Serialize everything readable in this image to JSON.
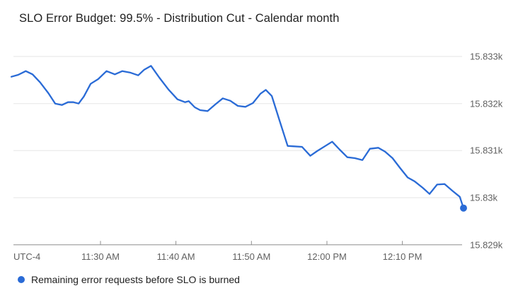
{
  "header": {
    "title": "SLO Error Budget: 99.5% - Distribution Cut - Calendar month"
  },
  "legend": {
    "label": "Remaining error requests before SLO is burned"
  },
  "colors": {
    "line": "#2a6bd6",
    "grid": "#e6e6e6",
    "axis": "#8f8f8f",
    "tick_label": "#616161",
    "title_text": "#212121"
  },
  "chart_data": {
    "type": "line",
    "title": "SLO Error Budget: 99.5% - Distribution Cut - Calendar month",
    "grid": true,
    "legend_position": "bottom-left",
    "x_axis": {
      "timezone_label": "UTC-4",
      "unit": "minutes since 11:18 AM",
      "range": [
        0,
        60.1
      ],
      "ticks": [
        {
          "t": 12,
          "label": "11:30 AM"
        },
        {
          "t": 22,
          "label": "11:40 AM"
        },
        {
          "t": 32,
          "label": "11:50 AM"
        },
        {
          "t": 42,
          "label": "12:00 PM"
        },
        {
          "t": 52,
          "label": "12:10 PM"
        }
      ]
    },
    "y_axis": {
      "side": "right",
      "range": [
        15829,
        15833
      ],
      "ticks": [
        {
          "v": 15833,
          "label": "15.833k"
        },
        {
          "v": 15832,
          "label": "15.832k"
        },
        {
          "v": 15831,
          "label": "15.831k"
        },
        {
          "v": 15830,
          "label": "15.83k"
        },
        {
          "v": 15829,
          "label": "15.829k"
        }
      ]
    },
    "series": [
      {
        "name": "Remaining error requests before SLO is burned",
        "endpoint_marker": true,
        "points": [
          [
            0.2,
            15832.57
          ],
          [
            1.1,
            15832.61
          ],
          [
            2.1,
            15832.69
          ],
          [
            3.0,
            15832.62
          ],
          [
            4.0,
            15832.45
          ],
          [
            5.1,
            15832.22
          ],
          [
            6.0,
            15832.0
          ],
          [
            6.9,
            15831.97
          ],
          [
            7.7,
            15832.03
          ],
          [
            8.4,
            15832.03
          ],
          [
            9.1,
            15832.0
          ],
          [
            9.8,
            15832.15
          ],
          [
            10.7,
            15832.42
          ],
          [
            11.7,
            15832.52
          ],
          [
            12.8,
            15832.69
          ],
          [
            13.9,
            15832.62
          ],
          [
            14.9,
            15832.69
          ],
          [
            15.9,
            15832.66
          ],
          [
            17.0,
            15832.6
          ],
          [
            17.8,
            15832.72
          ],
          [
            18.7,
            15832.8
          ],
          [
            19.8,
            15832.55
          ],
          [
            21.0,
            15832.3
          ],
          [
            22.2,
            15832.09
          ],
          [
            23.2,
            15832.03
          ],
          [
            23.7,
            15832.05
          ],
          [
            24.5,
            15831.92
          ],
          [
            25.2,
            15831.86
          ],
          [
            26.2,
            15831.84
          ],
          [
            27.2,
            15831.98
          ],
          [
            28.2,
            15832.11
          ],
          [
            29.2,
            15832.06
          ],
          [
            30.2,
            15831.95
          ],
          [
            31.2,
            15831.93
          ],
          [
            32.2,
            15832.01
          ],
          [
            33.2,
            15832.21
          ],
          [
            33.9,
            15832.29
          ],
          [
            34.7,
            15832.16
          ],
          [
            35.7,
            15831.65
          ],
          [
            36.8,
            15831.1
          ],
          [
            37.7,
            15831.09
          ],
          [
            38.7,
            15831.08
          ],
          [
            39.8,
            15830.89
          ],
          [
            40.7,
            15830.99
          ],
          [
            41.7,
            15831.09
          ],
          [
            42.7,
            15831.19
          ],
          [
            43.7,
            15831.02
          ],
          [
            44.7,
            15830.86
          ],
          [
            45.7,
            15830.84
          ],
          [
            46.7,
            15830.8
          ],
          [
            47.7,
            15831.04
          ],
          [
            48.8,
            15831.06
          ],
          [
            49.7,
            15830.98
          ],
          [
            50.7,
            15830.84
          ],
          [
            51.7,
            15830.63
          ],
          [
            52.7,
            15830.43
          ],
          [
            53.6,
            15830.35
          ],
          [
            54.7,
            15830.21
          ],
          [
            55.6,
            15830.08
          ],
          [
            56.6,
            15830.28
          ],
          [
            57.6,
            15830.29
          ],
          [
            58.6,
            15830.15
          ],
          [
            59.6,
            15830.02
          ],
          [
            60.1,
            15829.78
          ]
        ]
      }
    ]
  }
}
